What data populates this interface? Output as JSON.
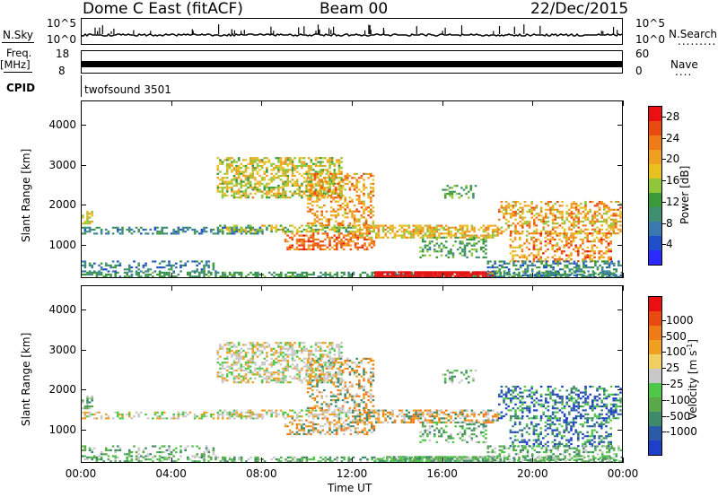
{
  "header": {
    "station": "Dome C East (fitACF)",
    "beam": "Beam 00",
    "date": "22/Dec/2015"
  },
  "strips": {
    "nsky_label": "N.Sky",
    "nsky_scale_top": "10^5",
    "nsky_scale_bottom": "10^0",
    "nsearch_label": "N.Search",
    "nsearch_dots": ".........",
    "nsearch_scale_top": "10^5",
    "nsearch_scale_bottom": "10^0",
    "freq_label_1": "Freq.",
    "freq_label_2": "[MHz]",
    "freq_top": "18",
    "freq_bottom": "8",
    "nave_label": "Nave",
    "nave_dots": "....",
    "nave_top": "60",
    "nave_bottom": "0",
    "cpid_label": "CPID",
    "cpid_value": "twofsound 3501"
  },
  "chart_data": [
    {
      "type": "heatmap",
      "name": "power",
      "ylabel": "Slant Range [km]",
      "yticks": [
        "1000",
        "2000",
        "3000",
        "4000"
      ],
      "ylim": [
        180,
        4600
      ],
      "xlim_hours": [
        0,
        24
      ],
      "colorbar": {
        "label": "Power [dB]",
        "ticks": [
          "4",
          "8",
          "12",
          "16",
          "20",
          "24",
          "28"
        ],
        "range": [
          0,
          30
        ],
        "colors": [
          "#2a2aff",
          "#1f4fc8",
          "#3a78b0",
          "#3f9070",
          "#3a9a3a",
          "#8fc63a",
          "#e8c020",
          "#f0a020",
          "#ef7a18",
          "#e84a10",
          "#e81010"
        ]
      }
    },
    {
      "type": "heatmap",
      "name": "velocity",
      "ylabel": "Slant Range [km]",
      "yticks": [
        "1000",
        "2000",
        "3000",
        "4000"
      ],
      "ylim": [
        180,
        4600
      ],
      "xlim_hours": [
        0,
        24
      ],
      "xlabel": "Time UT",
      "xticks": [
        "00:00",
        "04:00",
        "08:00",
        "12:00",
        "16:00",
        "20:00",
        "00:00"
      ],
      "colorbar": {
        "label": "Velocity [m s-1]",
        "ticks": [
          "1000",
          "500",
          "100",
          "25",
          "-25",
          "-100",
          "-500",
          "-1000"
        ],
        "colors": [
          "#1e3fc8",
          "#2a5aa8",
          "#3f8a6a",
          "#5aa84a",
          "#4fc84a",
          "#c8c8c8",
          "#f0d060",
          "#f0a020",
          "#ef7a18",
          "#e84a10",
          "#e81010"
        ]
      }
    }
  ]
}
